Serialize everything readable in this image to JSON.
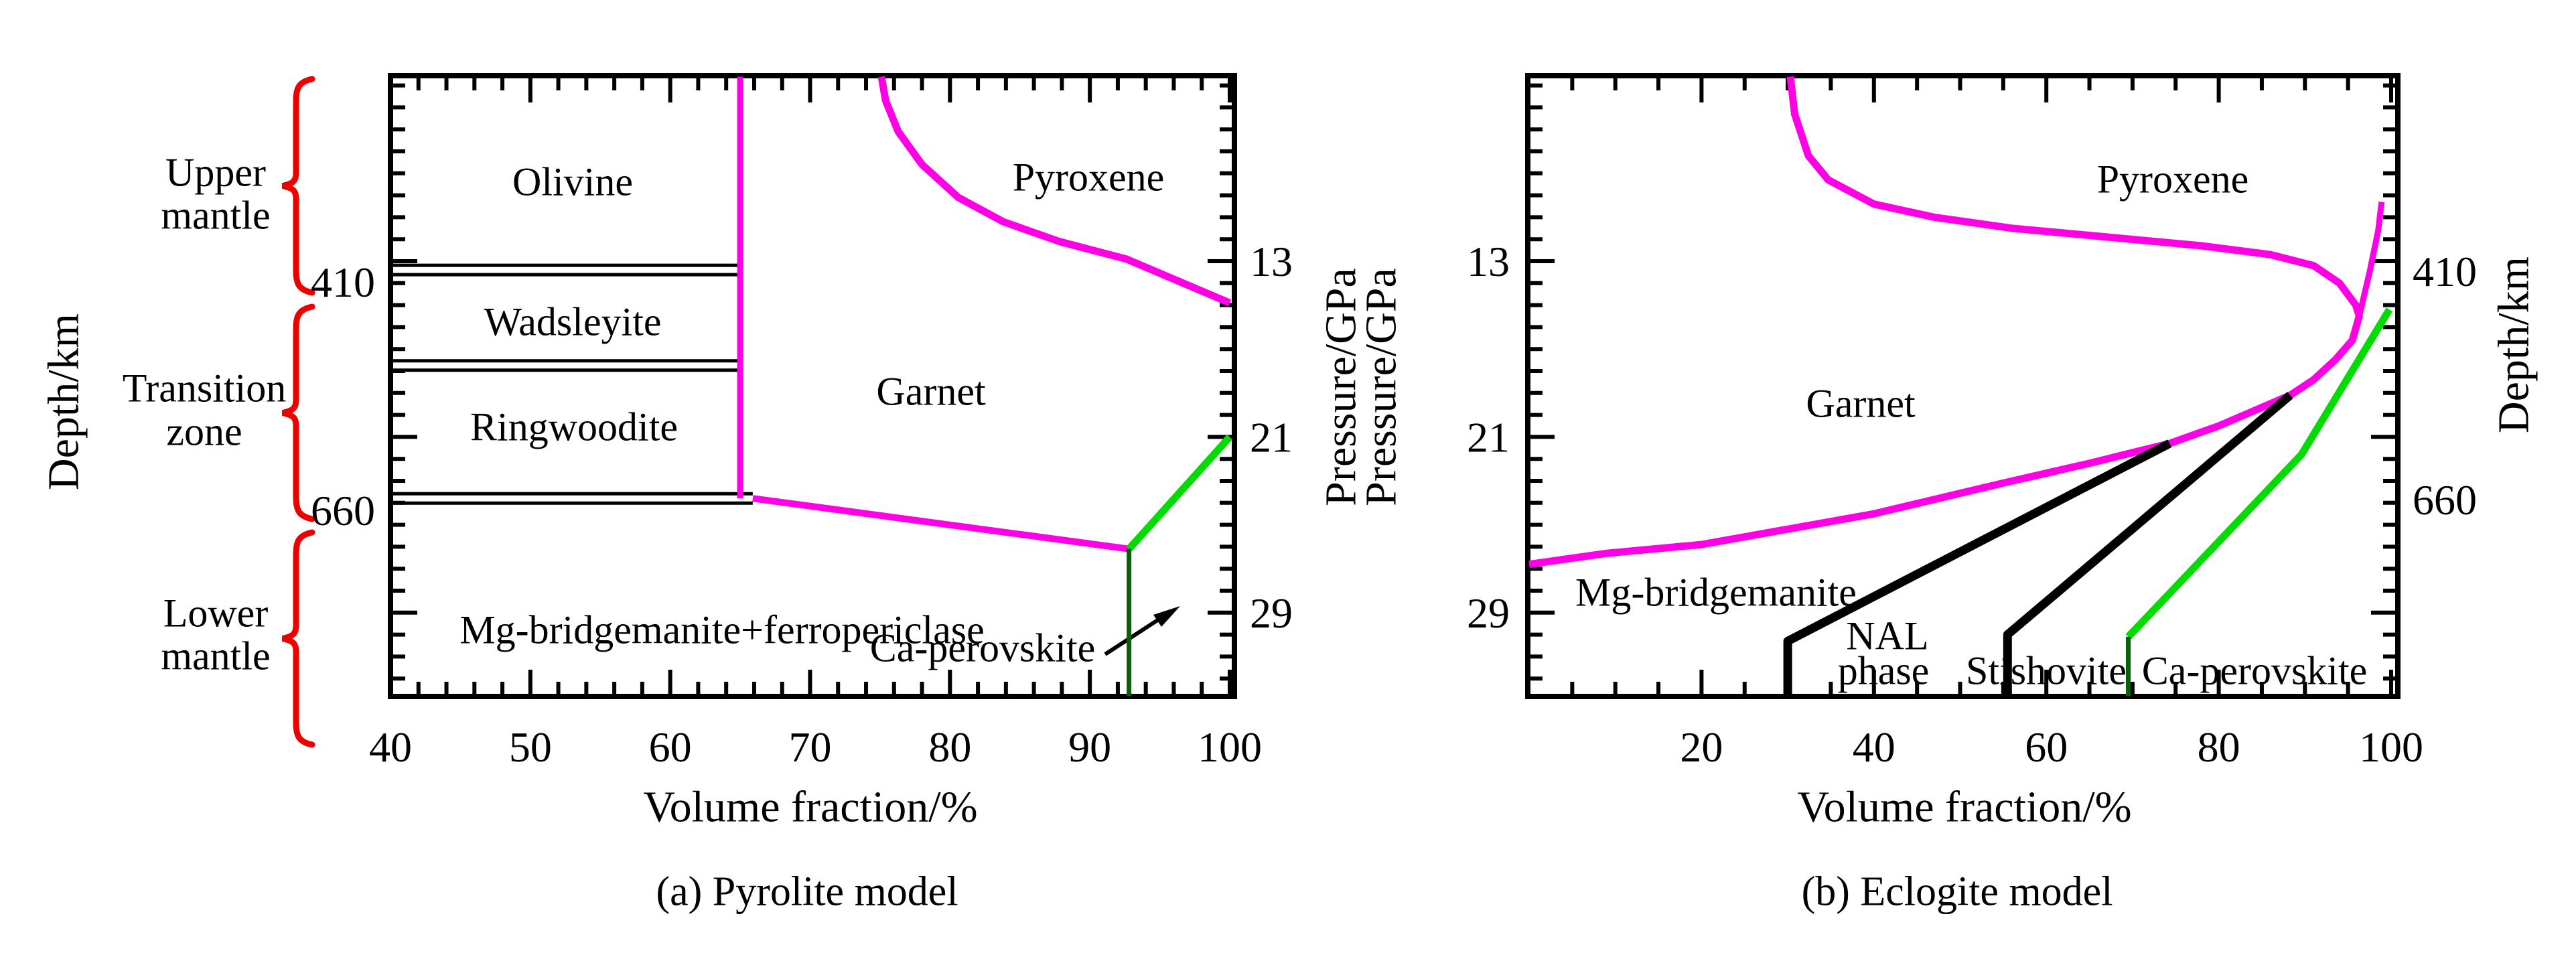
{
  "colors": {
    "magenta": "#FF00E6",
    "green": "#00DB00",
    "dark_green": "#0B5E0B",
    "brace_red": "#EE0000",
    "black": "#000000"
  },
  "chart_data": [
    {
      "id": "pyrolite",
      "type": "line",
      "caption": "(a) Pyrolite model",
      "x_axis_label": "Volume fraction/%",
      "depth_axis_label": "Depth/km",
      "pressure_axis_label": "Pressure/GPa",
      "x_range": [
        40,
        100
      ],
      "x_ticks": [
        40,
        50,
        60,
        70,
        80,
        90,
        100
      ],
      "x_minor_step": 2,
      "pressure_range": [
        4.6,
        32.8
      ],
      "pressure_ticks": [
        13,
        21,
        29
      ],
      "pressure_minor_step": 1,
      "pressure_label_side": "right",
      "depth_label_side": "left",
      "depth_marks": [
        {
          "label": "410",
          "pressure": 13.4
        },
        {
          "label": "660",
          "pressure": 23.8
        }
      ],
      "double_lines": [
        {
          "pressure": 13.4,
          "x_to": 65
        },
        {
          "pressure": 17.75,
          "x_to": 65
        },
        {
          "pressure": 23.8,
          "x_to": 65.9
        }
      ],
      "zone_labels": [
        [
          "Upper",
          "mantle"
        ],
        [
          "Transition",
          "zone"
        ],
        [
          "Lower",
          "mantle"
        ]
      ],
      "regions": {
        "olivine": "Olivine",
        "wadsleyite": "Wadsleyite",
        "ringwoodite": "Ringwoodite",
        "garnet": "Garnet",
        "pyroxene": "Pyroxene",
        "lower_mantle_assemblage": "Mg-bridgemanite+ferropericlase",
        "ca_perovskite": "Ca-perovskite"
      },
      "boundaries": [
        {
          "name": "olivine-polymorph-right",
          "color": "magenta",
          "width": 9,
          "points": [
            [
              65,
              4.6
            ],
            [
              65,
              23.8
            ]
          ]
        },
        {
          "name": "pyroxene-garnet",
          "color": "magenta",
          "width": 11,
          "points": [
            [
              75.1,
              4.6
            ],
            [
              75.4,
              5.7
            ],
            [
              76.3,
              7.1
            ],
            [
              78.0,
              8.6
            ],
            [
              80.6,
              10.1
            ],
            [
              83.8,
              11.2
            ],
            [
              87.8,
              12.1
            ],
            [
              92.6,
              12.9
            ],
            [
              100,
              14.9
            ]
          ]
        },
        {
          "name": "garnet-bridgmanite",
          "color": "magenta",
          "width": 10,
          "points": [
            [
              65.9,
              23.8
            ],
            [
              92.8,
              26.1
            ]
          ]
        },
        {
          "name": "garnet-capv",
          "color": "green",
          "width": 11,
          "points": [
            [
              92.8,
              26.1
            ],
            [
              100,
              21.0
            ]
          ]
        },
        {
          "name": "ca-perovskite-line",
          "color": "dark_green",
          "width": 7,
          "points": [
            [
              92.8,
              26.1
            ],
            [
              92.8,
              32.8
            ]
          ]
        }
      ]
    },
    {
      "id": "eclogite",
      "type": "line",
      "caption": "(b) Eclogite model",
      "x_axis_label": "Volume fraction/%",
      "depth_axis_label": "Depth/km",
      "pressure_axis_label": "Pressure/GPa",
      "x_range": [
        0,
        100
      ],
      "x_ticks": [
        20,
        40,
        60,
        80,
        100
      ],
      "x_minor_step": 5,
      "pressure_range": [
        4.6,
        32.8
      ],
      "pressure_ticks": [
        13,
        21,
        29
      ],
      "pressure_minor_step": 1,
      "pressure_label_side": "left",
      "depth_label_side": "right",
      "depth_marks": [
        {
          "label": "410",
          "pressure": 13.4
        },
        {
          "label": "660",
          "pressure": 23.8
        }
      ],
      "double_lines": [],
      "zone_labels": [],
      "regions": {
        "pyroxene": "Pyroxene",
        "garnet": "Garnet",
        "mg_bridgemanite": "Mg-bridgemanite",
        "nal_phase": [
          "NAL",
          "phase"
        ],
        "stishovite": "Stishovite",
        "ca_perovskite": "Ca-perovskite"
      },
      "boundaries": [
        {
          "name": "pyroxene-garnet",
          "color": "magenta",
          "width": 11,
          "points": [
            [
              30.3,
              4.6
            ],
            [
              30.8,
              6.3
            ],
            [
              32.4,
              8.2
            ],
            [
              34.7,
              9.3
            ],
            [
              40,
              10.4
            ],
            [
              47,
              11.0
            ],
            [
              56,
              11.5
            ],
            [
              67,
              11.9
            ],
            [
              78,
              12.3
            ],
            [
              86,
              12.7
            ],
            [
              91,
              13.2
            ],
            [
              94,
              14.0
            ],
            [
              95.9,
              15.0
            ],
            [
              96.3,
              15.5
            ],
            [
              95.5,
              16.6
            ],
            [
              93.5,
              17.5
            ],
            [
              91,
              18.4
            ],
            [
              88.3,
              19.1
            ],
            [
              80,
              20.5
            ],
            [
              74.3,
              21.3
            ],
            [
              65,
              22.2
            ],
            [
              55,
              23.1
            ],
            [
              40,
              24.5
            ],
            [
              20,
              25.9
            ],
            [
              9,
              26.3
            ],
            [
              0,
              26.8
            ]
          ]
        },
        {
          "name": "pyroxene-out-steep",
          "color": "magenta",
          "width": 9,
          "points": [
            [
              96.3,
              15.5
            ],
            [
              97.5,
              13.5
            ],
            [
              98.5,
              11.6
            ],
            [
              98.9,
              10.3
            ]
          ]
        },
        {
          "name": "nal-in",
          "color": "black",
          "width": 13,
          "points": [
            [
              30,
              32.8
            ],
            [
              30,
              30.3
            ],
            [
              74.3,
              21.3
            ]
          ]
        },
        {
          "name": "stishovite-in",
          "color": "black",
          "width": 13,
          "points": [
            [
              55.5,
              32.8
            ],
            [
              55.5,
              30.0
            ],
            [
              88.3,
              19.1
            ]
          ]
        },
        {
          "name": "capv-green",
          "color": "green",
          "width": 11,
          "points": [
            [
              69.5,
              30.1
            ],
            [
              89.6,
              21.8
            ],
            [
              99.8,
              15.2
            ]
          ]
        },
        {
          "name": "ca-perovskite-line",
          "color": "dark_green",
          "width": 7,
          "points": [
            [
              69.5,
              32.8
            ],
            [
              69.5,
              30.1
            ]
          ]
        }
      ]
    }
  ]
}
